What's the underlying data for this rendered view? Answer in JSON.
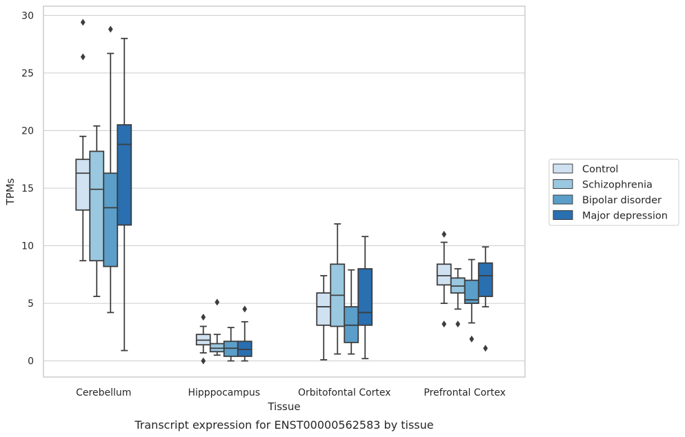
{
  "chart_data": {
    "type": "box",
    "title": "",
    "caption": "Transcript expression for ENST00000562583 by tissue",
    "xlabel": "Tissue",
    "ylabel": "TPMs",
    "ylim": [
      -1.4,
      30.8
    ],
    "yticks": [
      0,
      5,
      10,
      15,
      20,
      25,
      30
    ],
    "grid": true,
    "legend_position": "right",
    "categories": [
      "Cerebellum",
      "Hipppocampus",
      "Orbitofontal Cortex",
      "Prefrontal Cortex"
    ],
    "series": [
      {
        "name": "Control",
        "color": "#d0e1f2",
        "boxes": [
          {
            "whisker_low": 8.7,
            "q1": 13.1,
            "median": 16.3,
            "q3": 17.5,
            "whisker_high": 19.5,
            "outliers": [
              29.4,
              26.4
            ]
          },
          {
            "whisker_low": 0.7,
            "q1": 1.4,
            "median": 1.8,
            "q3": 2.3,
            "whisker_high": 3.0,
            "outliers": [
              3.8,
              0.0
            ]
          },
          {
            "whisker_low": 0.1,
            "q1": 3.1,
            "median": 4.7,
            "q3": 5.9,
            "whisker_high": 7.4,
            "outliers": []
          },
          {
            "whisker_low": 5.0,
            "q1": 6.6,
            "median": 7.4,
            "q3": 8.4,
            "whisker_high": 10.3,
            "outliers": [
              11.0,
              3.2
            ]
          }
        ]
      },
      {
        "name": "Schizophrenia",
        "color": "#9ac8e0",
        "boxes": [
          {
            "whisker_low": 5.6,
            "q1": 8.7,
            "median": 14.9,
            "q3": 18.2,
            "whisker_high": 20.4,
            "outliers": []
          },
          {
            "whisker_low": 0.5,
            "q1": 0.8,
            "median": 1.1,
            "q3": 1.5,
            "whisker_high": 2.3,
            "outliers": [
              5.1
            ]
          },
          {
            "whisker_low": 0.6,
            "q1": 3.0,
            "median": 5.7,
            "q3": 8.4,
            "whisker_high": 11.9,
            "outliers": []
          },
          {
            "whisker_low": 4.5,
            "q1": 5.9,
            "median": 6.5,
            "q3": 7.2,
            "whisker_high": 8.0,
            "outliers": [
              3.2
            ]
          }
        ]
      },
      {
        "name": "Bipolar disorder",
        "color": "#5a9ec9",
        "boxes": [
          {
            "whisker_low": 4.2,
            "q1": 8.2,
            "median": 13.3,
            "q3": 16.3,
            "whisker_high": 26.7,
            "outliers": [
              28.8
            ]
          },
          {
            "whisker_low": 0.0,
            "q1": 0.4,
            "median": 1.1,
            "q3": 1.7,
            "whisker_high": 2.9,
            "outliers": []
          },
          {
            "whisker_low": 0.6,
            "q1": 1.6,
            "median": 3.1,
            "q3": 4.7,
            "whisker_high": 7.9,
            "outliers": []
          },
          {
            "whisker_low": 3.3,
            "q1": 5.0,
            "median": 5.3,
            "q3": 7.0,
            "whisker_high": 8.8,
            "outliers": [
              1.9
            ]
          }
        ]
      },
      {
        "name": "Major depression",
        "color": "#2a6fb0",
        "boxes": [
          {
            "whisker_low": 0.9,
            "q1": 11.8,
            "median": 18.8,
            "q3": 20.5,
            "whisker_high": 28.0,
            "outliers": []
          },
          {
            "whisker_low": 0.0,
            "q1": 0.4,
            "median": 1.0,
            "q3": 1.7,
            "whisker_high": 3.4,
            "outliers": [
              4.5
            ]
          },
          {
            "whisker_low": 0.2,
            "q1": 3.1,
            "median": 4.2,
            "q3": 8.0,
            "whisker_high": 10.8,
            "outliers": []
          },
          {
            "whisker_low": 4.7,
            "q1": 5.6,
            "median": 7.4,
            "q3": 8.5,
            "whisker_high": 9.9,
            "outliers": [
              1.1
            ]
          }
        ]
      }
    ]
  }
}
